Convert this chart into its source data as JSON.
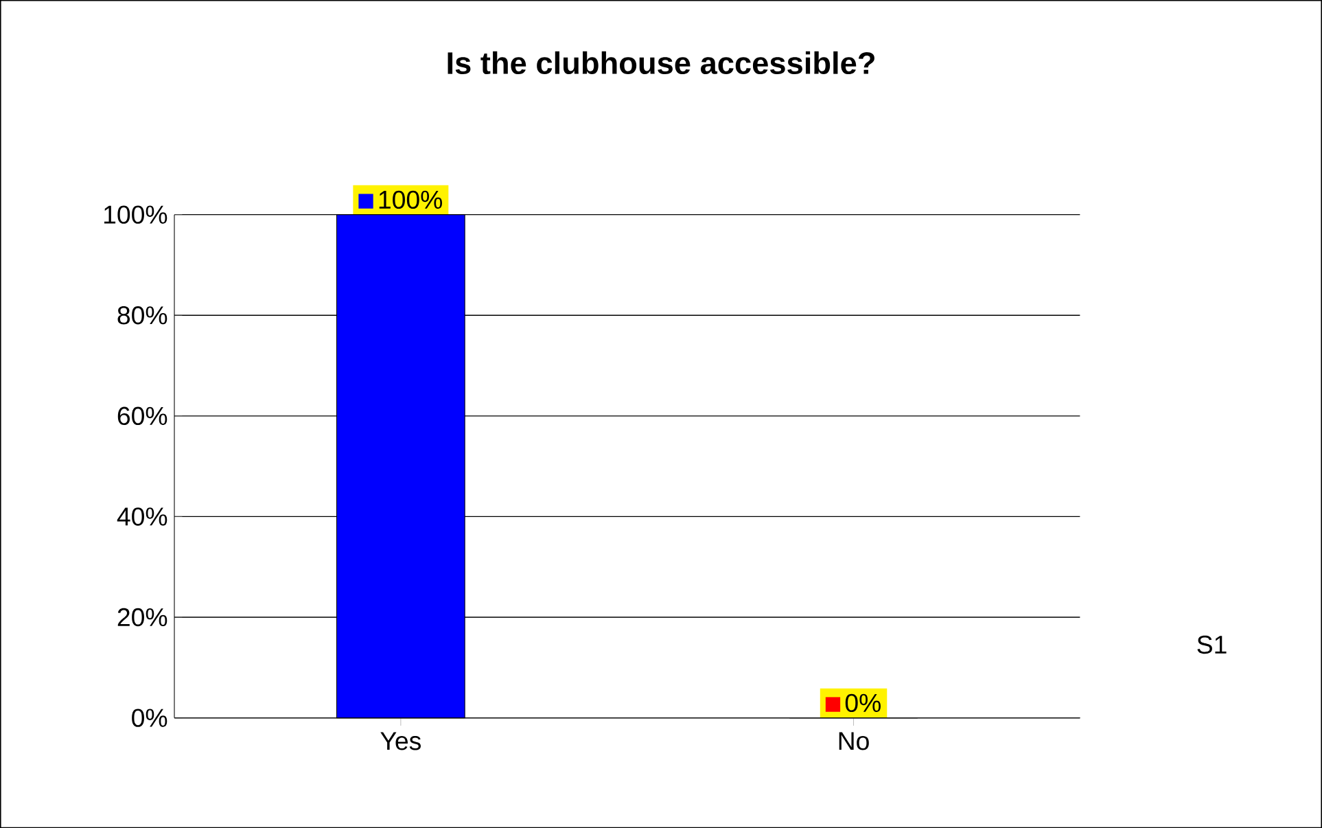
{
  "chart_data": {
    "type": "bar",
    "title": "Is the clubhouse accessible?",
    "categories": [
      "Yes",
      "No"
    ],
    "values": [
      100,
      0
    ],
    "colors": [
      "#0000ff",
      "#ff0000"
    ],
    "value_labels": [
      "100%",
      "0%"
    ],
    "ylim": [
      0,
      100
    ],
    "yticks": [
      {
        "value": 0,
        "label": "0%"
      },
      {
        "value": 20,
        "label": "20%"
      },
      {
        "value": 40,
        "label": "40%"
      },
      {
        "value": 60,
        "label": "60%"
      },
      {
        "value": 80,
        "label": "80%"
      },
      {
        "value": 100,
        "label": "100%"
      }
    ],
    "grid": "y",
    "annotations": [
      "S1"
    ]
  }
}
